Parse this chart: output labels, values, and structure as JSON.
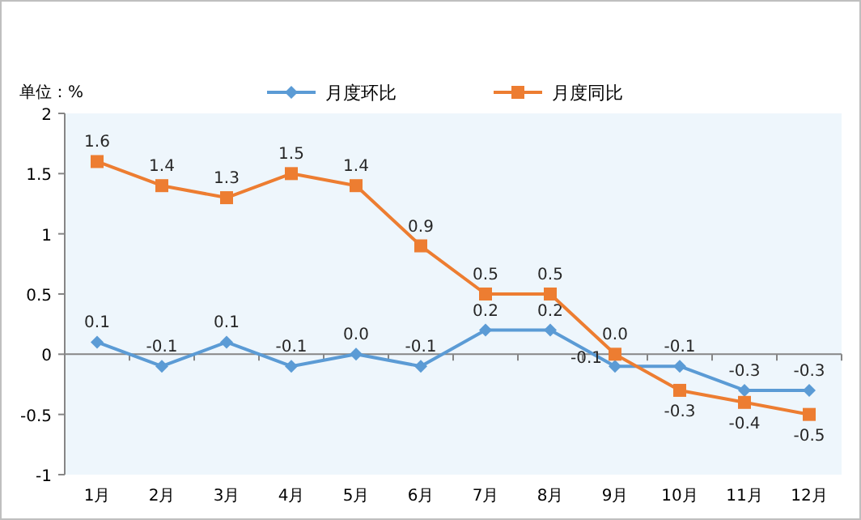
{
  "chart_data": {
    "type": "line",
    "categories": [
      "1月",
      "2月",
      "3月",
      "4月",
      "5月",
      "6月",
      "7月",
      "8月",
      "9月",
      "10月",
      "11月",
      "12月"
    ],
    "series": [
      {
        "name": "月度环比",
        "color": "#5b9bd5",
        "marker": "diamond",
        "values": [
          0.1,
          -0.1,
          0.1,
          -0.1,
          0.0,
          -0.1,
          0.2,
          0.2,
          -0.1,
          -0.1,
          -0.3,
          -0.3
        ],
        "value_labels": [
          "0.1",
          "-0.1",
          "0.1",
          "-0.1",
          "0.0",
          "-0.1",
          "0.2",
          "0.2",
          "-0.1",
          "-0.1",
          "-0.3",
          "-0.3"
        ]
      },
      {
        "name": "月度同比",
        "color": "#ed7d31",
        "marker": "square",
        "values": [
          1.6,
          1.4,
          1.3,
          1.5,
          1.4,
          0.9,
          0.5,
          0.5,
          0.0,
          -0.3,
          -0.4,
          -0.5
        ],
        "value_labels": [
          "1.6",
          "1.4",
          "1.3",
          "1.5",
          "1.4",
          "0.9",
          "0.5",
          "0.5",
          "0.0",
          "-0.3",
          "-0.4",
          "-0.5"
        ]
      }
    ],
    "ylim": [
      -1,
      2
    ],
    "yticks": [
      -1,
      -0.5,
      0,
      0.5,
      1,
      1.5,
      2
    ],
    "legend": "top",
    "annotations": [
      "单位：%"
    ]
  }
}
